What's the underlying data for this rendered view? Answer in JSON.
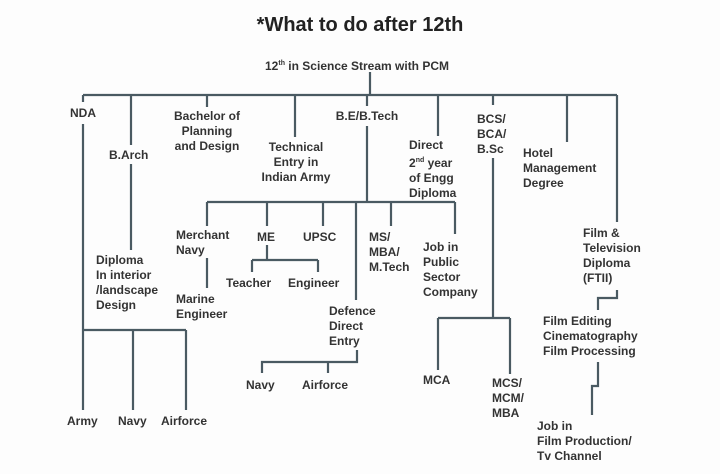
{
  "title": "*What to do after 12th",
  "root": {
    "prefix": "12",
    "sup": "th",
    "rest": " in Science Stream with PCM"
  },
  "line_color": "#4a5a62",
  "nodes": {
    "nda": "NDA",
    "army": "Army",
    "navy1": "Navy",
    "airforce1": "Airforce",
    "barch": "B.Arch",
    "diploma_interior": "Diploma\nIn interior\n/landscape\nDesign",
    "bachelor_planning": "Bachelor of\nPlanning\nand Design",
    "technical_entry": "Technical\nEntry in\nIndian Army",
    "betech": "B.E/B.Tech",
    "merchant_navy": "Merchant\nNavy",
    "marine_engineer": "Marine\nEngineer",
    "me": "ME",
    "teacher": "Teacher",
    "engineer": "Engineer",
    "upsc": "UPSC",
    "defence": "Defence\nDirect\nEntry",
    "navy2": "Navy",
    "airforce2": "Airforce",
    "ms_mba": "MS/\nMBA/\nM.Tech",
    "job_public": "Job in\nPublic\nSector\nCompany",
    "direct_2nd": {
      "l1": "Direct",
      "l2a": "2",
      "l2sup": "nd",
      "l2b": " year",
      "l3": "of Engg\nDiploma"
    },
    "bcs": "BCS/\nBCA/\nB.Sc",
    "mca": "MCA",
    "mcs": "MCS/\nMCM/\nMBA",
    "hotel": "Hotel\nManagement\nDegree",
    "film_tv": "Film &\nTelevision\nDiploma\n(FTII)",
    "film_editing": "Film Editing\nCinematography\nFilm Processing",
    "job_film": "Job in\nFilm Production/\nTv Channel"
  }
}
